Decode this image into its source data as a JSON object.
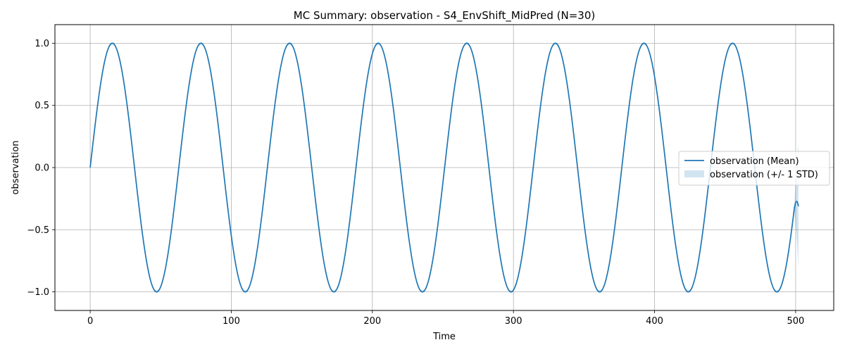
{
  "chart_data": {
    "type": "line",
    "title": "MC Summary: observation - S4_EnvShift_MidPred (N=30)",
    "xlabel": "Time",
    "ylabel": "observation",
    "xlim": [
      -25,
      527
    ],
    "ylim": [
      -1.15,
      1.15
    ],
    "xticks": [
      0,
      100,
      200,
      300,
      400,
      500
    ],
    "xtick_labels": [
      "0",
      "100",
      "200",
      "300",
      "400",
      "500"
    ],
    "yticks": [
      -1.0,
      -0.5,
      0.0,
      0.5,
      1.0
    ],
    "ytick_labels": [
      "−1.0",
      "−0.5",
      "0.0",
      "0.5",
      "1.0"
    ],
    "grid": true,
    "legend_position": "center-right",
    "series": [
      {
        "name": "observation (Mean)",
        "kind": "line",
        "color": "#1f77b4",
        "x_start": 0,
        "x_end": 502,
        "period": 62.8,
        "amplitude": 1.0,
        "approx_function": "sin(2*pi*t/period)"
      },
      {
        "name": "observation (+/- 1 STD)",
        "kind": "band",
        "color": "#1f77b4",
        "opacity": 0.2,
        "std_typical": 0.01,
        "std_at_end": 0.5
      }
    ]
  }
}
